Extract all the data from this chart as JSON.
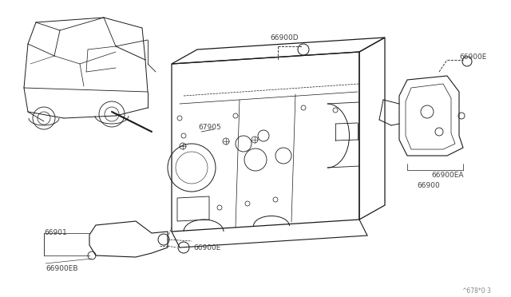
{
  "background_color": "#ffffff",
  "line_color": "#1a1a1a",
  "label_color": "#404040",
  "figure_width": 6.4,
  "figure_height": 3.72,
  "dpi": 100,
  "watermark": "^678*0·3",
  "parts": {
    "main_panel": "67905",
    "panel_top_label": "66900D",
    "bracket_assembly": "66900",
    "bracket_detail": "66900EA",
    "bracket_fastener_top": "66900E",
    "lower_bracket": "66901",
    "lower_fastener_a": "66900EB",
    "lower_fastener_b": "66900E"
  }
}
